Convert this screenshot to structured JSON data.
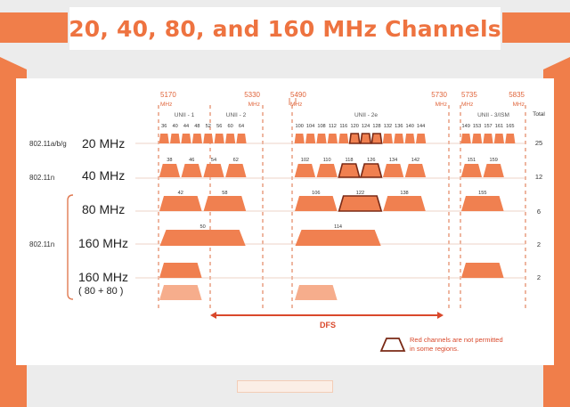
{
  "header": {
    "title": "20, 40, 80, and 160 MHz Channels"
  },
  "colors": {
    "accent": "#f07e4a",
    "block": "#f08050",
    "block_light": "#f6ad8c",
    "restricted_outline": "#7a2a16",
    "label_orange": "#e0643a",
    "dfs": "#d9482b"
  },
  "frequencies": [
    {
      "value": "5170",
      "unit": "MHz"
    },
    {
      "value": "5330",
      "unit": "MHz"
    },
    {
      "value": "5490",
      "unit": "MHz"
    },
    {
      "value": "5730",
      "unit": "MHz"
    },
    {
      "value": "5735",
      "unit": "MHz"
    },
    {
      "value": "5835",
      "unit": "MHz"
    }
  ],
  "bands": [
    "UNII - 1",
    "UNII - 2",
    "UNII - 2e",
    "UNII - 3/ISM"
  ],
  "total_label": "Total",
  "rows": [
    {
      "standard": "802.11a/b/g",
      "width": "20 MHz",
      "total": "25"
    },
    {
      "standard": "802.11n",
      "width": "40 MHz",
      "total": "12"
    },
    {
      "standard": "",
      "width": "80 MHz",
      "total": "6"
    },
    {
      "standard": "802.11n",
      "width": "160 MHz",
      "total": "2"
    },
    {
      "standard": "",
      "width": "160 MHz",
      "sub": "( 80 + 80 )",
      "total": "2"
    }
  ],
  "channels": {
    "c20": [
      "36",
      "40",
      "44",
      "48",
      "52",
      "56",
      "60",
      "64",
      "100",
      "104",
      "108",
      "112",
      "116",
      "120",
      "124",
      "128",
      "132",
      "136",
      "140",
      "144",
      "149",
      "153",
      "157",
      "161",
      "165"
    ],
    "c40": [
      "38",
      "46",
      "54",
      "62",
      "102",
      "110",
      "118",
      "126",
      "134",
      "142",
      "151",
      "159"
    ],
    "c80": [
      "42",
      "58",
      "106",
      "122",
      "138",
      "155"
    ],
    "c160": [
      "50",
      "114"
    ]
  },
  "restricted_channels": [
    "120",
    "124",
    "128",
    "118",
    "126",
    "122"
  ],
  "dfs_label": "DFS",
  "legend": {
    "text_line1": "Red channels are not permitted",
    "text_line2": "in some regions."
  }
}
